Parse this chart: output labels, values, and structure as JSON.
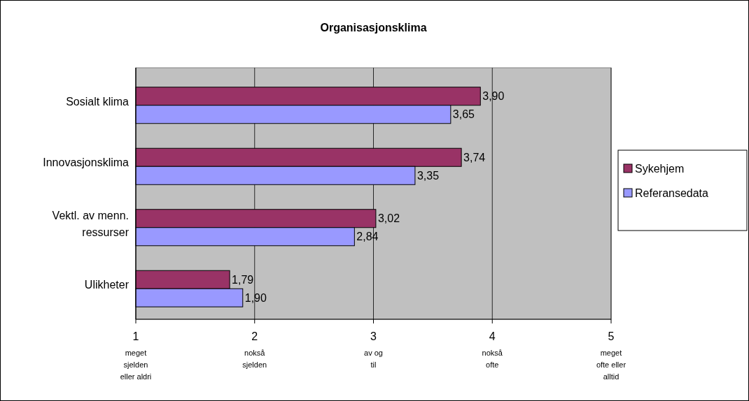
{
  "chart_data": {
    "type": "bar",
    "orientation": "horizontal",
    "title": "Organisasjonsklima",
    "categories": [
      "Sosialt klima",
      "Innovasjonsklima",
      "Vektl. av menn. ressurser",
      "Ulikheter"
    ],
    "series": [
      {
        "name": "Sykehjem",
        "color": "#993366",
        "values": [
          3.9,
          3.74,
          3.02,
          1.79
        ],
        "value_labels": [
          "3,90",
          "3,74",
          "3,02",
          "1,79"
        ]
      },
      {
        "name": "Referansedata",
        "color": "#9999ff",
        "values": [
          3.65,
          3.35,
          2.84,
          1.9
        ],
        "value_labels": [
          "3,65",
          "3,35",
          "2,84",
          "1,90"
        ]
      }
    ],
    "xlim": [
      1,
      5
    ],
    "xticks": [
      {
        "value": 1,
        "label": "1\nmeget\nsjelden\neller aldri"
      },
      {
        "value": 2,
        "label": "2\nnokså\nsjelden"
      },
      {
        "value": 3,
        "label": "3\nav og\ntil"
      },
      {
        "value": 4,
        "label": "4\nnokså\nofte"
      },
      {
        "value": 5,
        "label": "5\nmeget\nofte eller\nalltid"
      }
    ],
    "grid": "x",
    "legend": "right"
  }
}
